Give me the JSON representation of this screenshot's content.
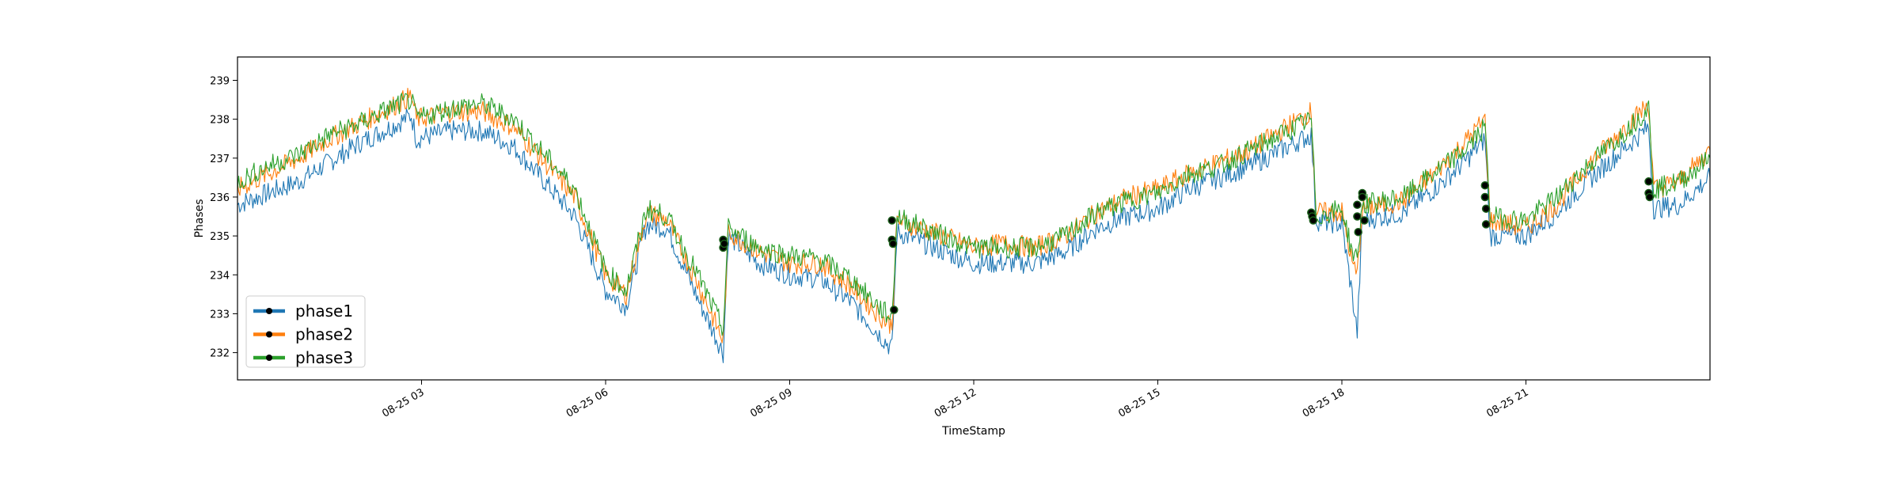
{
  "chart_data": {
    "type": "line",
    "title": "",
    "xlabel": "TimeStamp",
    "ylabel": "Phases",
    "xlim": [
      "2023-08-25 00:00",
      "2023-08-25 24:00"
    ],
    "ylim": [
      231.3,
      239.6
    ],
    "x_ticks": [
      {
        "x": "2023-08-25 03:00",
        "label": "08-25 03"
      },
      {
        "x": "2023-08-25 06:00",
        "label": "08-25 06"
      },
      {
        "x": "2023-08-25 09:00",
        "label": "08-25 09"
      },
      {
        "x": "2023-08-25 12:00",
        "label": "08-25 12"
      },
      {
        "x": "2023-08-25 15:00",
        "label": "08-25 15"
      },
      {
        "x": "2023-08-25 18:00",
        "label": "08-25 18"
      },
      {
        "x": "2023-08-25 21:00",
        "label": "08-25 21"
      }
    ],
    "y_ticks": [
      232,
      233,
      234,
      235,
      236,
      237,
      238,
      239
    ],
    "grid": false,
    "legend": "lower-left",
    "series": [
      {
        "name": "phase1",
        "color": "#1f77b4",
        "points": [
          [
            "2023-08-25 00:00",
            235.8
          ],
          [
            "2023-08-25 00:30",
            236.1
          ],
          [
            "2023-08-25 01:00",
            236.4
          ],
          [
            "2023-08-25 01:30",
            236.9
          ],
          [
            "2023-08-25 02:00",
            237.4
          ],
          [
            "2023-08-25 02:30",
            237.8
          ],
          [
            "2023-08-25 02:50",
            238.1
          ],
          [
            "2023-08-25 02:55",
            237.5
          ],
          [
            "2023-08-25 03:30",
            237.7
          ],
          [
            "2023-08-25 04:00",
            237.7
          ],
          [
            "2023-08-25 04:30",
            237.3
          ],
          [
            "2023-08-25 05:00",
            236.4
          ],
          [
            "2023-08-25 05:30",
            235.5
          ],
          [
            "2023-08-25 06:00",
            233.6
          ],
          [
            "2023-08-25 06:20",
            233.2
          ],
          [
            "2023-08-25 06:40",
            235.3
          ],
          [
            "2023-08-25 07:00",
            235.2
          ],
          [
            "2023-08-25 07:30",
            233.4
          ],
          [
            "2023-08-25 07:55",
            232.0
          ],
          [
            "2023-08-25 08:00",
            235.0
          ],
          [
            "2023-08-25 08:30",
            234.3
          ],
          [
            "2023-08-25 09:00",
            234.0
          ],
          [
            "2023-08-25 09:30",
            233.9
          ],
          [
            "2023-08-25 10:00",
            233.3
          ],
          [
            "2023-08-25 10:30",
            232.4
          ],
          [
            "2023-08-25 10:40",
            232.1
          ],
          [
            "2023-08-25 10:45",
            235.1
          ],
          [
            "2023-08-25 11:30",
            234.6
          ],
          [
            "2023-08-25 12:00",
            234.3
          ],
          [
            "2023-08-25 12:30",
            234.3
          ],
          [
            "2023-08-25 13:00",
            234.3
          ],
          [
            "2023-08-25 13:30",
            234.6
          ],
          [
            "2023-08-25 14:00",
            235.2
          ],
          [
            "2023-08-25 14:30",
            235.5
          ],
          [
            "2023-08-25 15:00",
            235.7
          ],
          [
            "2023-08-25 15:30",
            236.2
          ],
          [
            "2023-08-25 16:00",
            236.5
          ],
          [
            "2023-08-25 16:30",
            236.8
          ],
          [
            "2023-08-25 17:00",
            237.2
          ],
          [
            "2023-08-25 17:30",
            237.6
          ],
          [
            "2023-08-25 17:35",
            235.4
          ],
          [
            "2023-08-25 18:00",
            235.3
          ],
          [
            "2023-08-25 18:10",
            233.5
          ],
          [
            "2023-08-25 18:15",
            232.5
          ],
          [
            "2023-08-25 18:20",
            235.4
          ],
          [
            "2023-08-25 19:00",
            235.6
          ],
          [
            "2023-08-25 19:30",
            236.2
          ],
          [
            "2023-08-25 20:00",
            236.9
          ],
          [
            "2023-08-25 20:20",
            237.5
          ],
          [
            "2023-08-25 20:25",
            235.0
          ],
          [
            "2023-08-25 21:00",
            235.0
          ],
          [
            "2023-08-25 21:30",
            235.6
          ],
          [
            "2023-08-25 22:00",
            236.4
          ],
          [
            "2023-08-25 22:30",
            237.1
          ],
          [
            "2023-08-25 23:00",
            237.8
          ],
          [
            "2023-08-25 23:05",
            235.7
          ],
          [
            "2023-08-25 23:30",
            235.8
          ],
          [
            "2023-08-25 24:00",
            236.5
          ]
        ]
      },
      {
        "name": "phase2",
        "color": "#ff7f0e",
        "points": [
          [
            "2023-08-25 00:00",
            236.2
          ],
          [
            "2023-08-25 00:30",
            236.6
          ],
          [
            "2023-08-25 01:00",
            237.0
          ],
          [
            "2023-08-25 01:30",
            237.5
          ],
          [
            "2023-08-25 02:00",
            237.9
          ],
          [
            "2023-08-25 02:30",
            238.3
          ],
          [
            "2023-08-25 02:50",
            238.6
          ],
          [
            "2023-08-25 02:55",
            238.0
          ],
          [
            "2023-08-25 03:30",
            238.2
          ],
          [
            "2023-08-25 04:00",
            238.2
          ],
          [
            "2023-08-25 04:30",
            237.8
          ],
          [
            "2023-08-25 05:00",
            236.9
          ],
          [
            "2023-08-25 05:30",
            236.0
          ],
          [
            "2023-08-25 06:00",
            234.0
          ],
          [
            "2023-08-25 06:20",
            233.5
          ],
          [
            "2023-08-25 06:40",
            235.6
          ],
          [
            "2023-08-25 07:00",
            235.4
          ],
          [
            "2023-08-25 07:30",
            233.8
          ],
          [
            "2023-08-25 07:55",
            232.3
          ],
          [
            "2023-08-25 08:00",
            235.1
          ],
          [
            "2023-08-25 08:30",
            234.6
          ],
          [
            "2023-08-25 09:00",
            234.3
          ],
          [
            "2023-08-25 09:30",
            234.3
          ],
          [
            "2023-08-25 10:00",
            233.7
          ],
          [
            "2023-08-25 10:30",
            232.9
          ],
          [
            "2023-08-25 10:40",
            232.7
          ],
          [
            "2023-08-25 10:45",
            235.4
          ],
          [
            "2023-08-25 11:30",
            235.0
          ],
          [
            "2023-08-25 12:00",
            234.7
          ],
          [
            "2023-08-25 12:30",
            234.8
          ],
          [
            "2023-08-25 13:00",
            234.7
          ],
          [
            "2023-08-25 13:30",
            235.0
          ],
          [
            "2023-08-25 14:00",
            235.6
          ],
          [
            "2023-08-25 14:30",
            236.0
          ],
          [
            "2023-08-25 15:00",
            236.2
          ],
          [
            "2023-08-25 15:30",
            236.6
          ],
          [
            "2023-08-25 16:00",
            236.9
          ],
          [
            "2023-08-25 16:30",
            237.2
          ],
          [
            "2023-08-25 17:00",
            237.7
          ],
          [
            "2023-08-25 17:30",
            238.2
          ],
          [
            "2023-08-25 17:35",
            235.6
          ],
          [
            "2023-08-25 18:00",
            235.6
          ],
          [
            "2023-08-25 18:10",
            234.3
          ],
          [
            "2023-08-25 18:15",
            234.0
          ],
          [
            "2023-08-25 18:20",
            235.7
          ],
          [
            "2023-08-25 19:00",
            235.9
          ],
          [
            "2023-08-25 19:30",
            236.6
          ],
          [
            "2023-08-25 20:00",
            237.4
          ],
          [
            "2023-08-25 20:20",
            238.0
          ],
          [
            "2023-08-25 20:25",
            235.4
          ],
          [
            "2023-08-25 21:00",
            235.2
          ],
          [
            "2023-08-25 21:30",
            235.8
          ],
          [
            "2023-08-25 22:00",
            236.8
          ],
          [
            "2023-08-25 22:30",
            237.6
          ],
          [
            "2023-08-25 23:00",
            238.4
          ],
          [
            "2023-08-25 23:05",
            236.2
          ],
          [
            "2023-08-25 23:30",
            236.4
          ],
          [
            "2023-08-25 24:00",
            237.2
          ]
        ]
      },
      {
        "name": "phase3",
        "color": "#2ca02c",
        "points": [
          [
            "2023-08-25 00:00",
            236.4
          ],
          [
            "2023-08-25 00:30",
            236.8
          ],
          [
            "2023-08-25 01:00",
            237.1
          ],
          [
            "2023-08-25 01:30",
            237.6
          ],
          [
            "2023-08-25 02:00",
            237.9
          ],
          [
            "2023-08-25 02:30",
            238.3
          ],
          [
            "2023-08-25 02:50",
            238.5
          ],
          [
            "2023-08-25 02:55",
            238.0
          ],
          [
            "2023-08-25 03:30",
            238.3
          ],
          [
            "2023-08-25 04:00",
            238.4
          ],
          [
            "2023-08-25 04:30",
            238.0
          ],
          [
            "2023-08-25 05:00",
            237.1
          ],
          [
            "2023-08-25 05:30",
            236.2
          ],
          [
            "2023-08-25 06:00",
            234.1
          ],
          [
            "2023-08-25 06:20",
            233.6
          ],
          [
            "2023-08-25 06:40",
            235.7
          ],
          [
            "2023-08-25 07:00",
            235.5
          ],
          [
            "2023-08-25 07:30",
            234.0
          ],
          [
            "2023-08-25 07:55",
            232.6
          ],
          [
            "2023-08-25 08:00",
            235.2
          ],
          [
            "2023-08-25 08:30",
            234.7
          ],
          [
            "2023-08-25 09:00",
            234.5
          ],
          [
            "2023-08-25 09:30",
            234.4
          ],
          [
            "2023-08-25 10:00",
            233.9
          ],
          [
            "2023-08-25 10:30",
            233.1
          ],
          [
            "2023-08-25 10:40",
            232.9
          ],
          [
            "2023-08-25 10:45",
            235.5
          ],
          [
            "2023-08-25 11:30",
            235.0
          ],
          [
            "2023-08-25 12:00",
            234.7
          ],
          [
            "2023-08-25 12:30",
            234.7
          ],
          [
            "2023-08-25 13:00",
            234.7
          ],
          [
            "2023-08-25 13:30",
            235.0
          ],
          [
            "2023-08-25 14:00",
            235.6
          ],
          [
            "2023-08-25 14:30",
            235.9
          ],
          [
            "2023-08-25 15:00",
            236.1
          ],
          [
            "2023-08-25 15:30",
            236.6
          ],
          [
            "2023-08-25 16:00",
            236.8
          ],
          [
            "2023-08-25 16:30",
            237.2
          ],
          [
            "2023-08-25 17:00",
            237.6
          ],
          [
            "2023-08-25 17:30",
            238.0
          ],
          [
            "2023-08-25 17:35",
            235.5
          ],
          [
            "2023-08-25 18:00",
            235.7
          ],
          [
            "2023-08-25 18:10",
            234.6
          ],
          [
            "2023-08-25 18:15",
            234.4
          ],
          [
            "2023-08-25 18:20",
            235.8
          ],
          [
            "2023-08-25 19:00",
            236.0
          ],
          [
            "2023-08-25 19:30",
            236.6
          ],
          [
            "2023-08-25 20:00",
            237.2
          ],
          [
            "2023-08-25 20:20",
            237.8
          ],
          [
            "2023-08-25 20:25",
            235.5
          ],
          [
            "2023-08-25 21:00",
            235.4
          ],
          [
            "2023-08-25 21:30",
            236.0
          ],
          [
            "2023-08-25 22:00",
            236.8
          ],
          [
            "2023-08-25 22:30",
            237.5
          ],
          [
            "2023-08-25 23:00",
            238.3
          ],
          [
            "2023-08-25 23:05",
            236.2
          ],
          [
            "2023-08-25 23:30",
            236.4
          ],
          [
            "2023-08-25 24:00",
            237.0
          ]
        ]
      }
    ],
    "highlighted_points": [
      [
        "2023-08-25 07:55",
        234.9
      ],
      [
        "2023-08-25 07:55",
        234.7
      ],
      [
        "2023-08-25 07:56",
        234.8
      ],
      [
        "2023-08-25 10:40",
        235.4
      ],
      [
        "2023-08-25 10:40",
        234.9
      ],
      [
        "2023-08-25 10:41",
        234.8
      ],
      [
        "2023-08-25 10:42",
        233.1
      ],
      [
        "2023-08-25 17:30",
        235.6
      ],
      [
        "2023-08-25 17:31",
        235.5
      ],
      [
        "2023-08-25 17:32",
        235.4
      ],
      [
        "2023-08-25 18:15",
        235.8
      ],
      [
        "2023-08-25 18:15",
        235.5
      ],
      [
        "2023-08-25 18:16",
        235.1
      ],
      [
        "2023-08-25 18:20",
        236.1
      ],
      [
        "2023-08-25 18:20",
        236.0
      ],
      [
        "2023-08-25 18:22",
        235.4
      ],
      [
        "2023-08-25 20:20",
        236.3
      ],
      [
        "2023-08-25 20:20",
        236.0
      ],
      [
        "2023-08-25 20:21",
        235.7
      ],
      [
        "2023-08-25 20:21",
        235.3
      ],
      [
        "2023-08-25 23:00",
        236.4
      ],
      [
        "2023-08-25 23:00",
        236.1
      ],
      [
        "2023-08-25 23:01",
        236.0
      ]
    ]
  }
}
